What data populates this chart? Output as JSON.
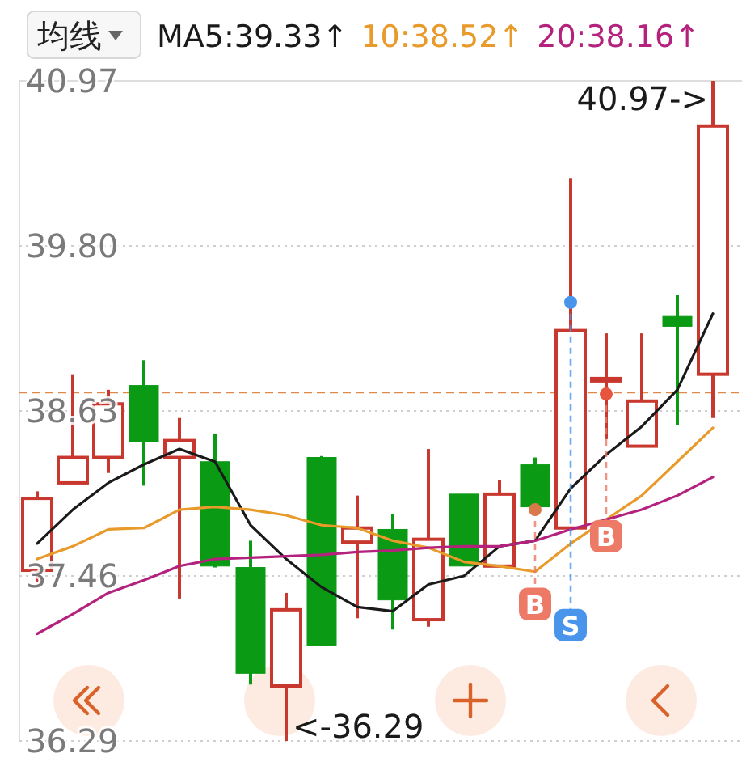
{
  "chart_data": {
    "type": "candlestick",
    "legend_title": "均线",
    "legend": "top",
    "grid": "y",
    "categories": [
      null,
      null,
      null,
      null,
      null,
      null,
      null,
      null,
      null,
      null,
      null,
      null,
      null,
      null,
      null,
      null,
      null,
      null,
      null,
      null
    ],
    "ohlc": [
      [
        37.5,
        38.06,
        37.42,
        38.01
      ],
      [
        38.12,
        38.89,
        38.12,
        38.3
      ],
      [
        38.3,
        38.78,
        38.19,
        38.68
      ],
      [
        38.81,
        38.99,
        38.1,
        38.41
      ],
      [
        38.3,
        38.58,
        37.3,
        38.42
      ],
      [
        38.27,
        38.47,
        37.52,
        37.53
      ],
      [
        37.52,
        37.71,
        36.69,
        36.77
      ],
      [
        36.68,
        37.34,
        36.29,
        37.22
      ],
      [
        38.3,
        38.31,
        36.97,
        36.97
      ],
      [
        37.7,
        38.03,
        37.16,
        37.8
      ],
      [
        37.79,
        37.9,
        37.08,
        37.29
      ],
      [
        37.15,
        38.36,
        37.1,
        37.72
      ],
      [
        38.04,
        38.04,
        37.53,
        37.53
      ],
      [
        37.53,
        38.14,
        37.53,
        38.04
      ],
      [
        38.25,
        38.3,
        37.95,
        37.95
      ],
      [
        37.8,
        40.28,
        37.8,
        39.2
      ],
      [
        38.86,
        39.18,
        38.43,
        38.86
      ],
      [
        38.38,
        39.18,
        38.38,
        38.7
      ],
      [
        39.3,
        39.45,
        38.53,
        39.23
      ],
      [
        38.89,
        40.97,
        38.58,
        40.65
      ]
    ],
    "colors": [
      "#c8382e",
      "#c8382e",
      "#c8382e",
      "#0a9a14",
      "#c8382e",
      "#0a9a14",
      "#0a9a14",
      "#c8382e",
      "#0a9a14",
      "#c8382e",
      "#0a9a14",
      "#c8382e",
      "#0a9a14",
      "#c8382e",
      "#0a9a14",
      "#c8382e",
      "#c8382e",
      "#c8382e",
      "#0a9a14",
      "#c8382e"
    ],
    "series": [
      {
        "type": "line",
        "name": "MA5:39.33↑",
        "color": "#1a1a1a",
        "values": [
          37.69,
          37.93,
          38.12,
          38.25,
          38.36,
          38.27,
          37.82,
          37.58,
          37.38,
          37.24,
          37.21,
          37.4,
          37.46,
          37.67,
          37.71,
          38.08,
          38.32,
          38.52,
          38.78,
          39.32
        ]
      },
      {
        "type": "line",
        "name": "10:38.52↑",
        "color": "#e89a2a",
        "values": [
          37.58,
          37.67,
          37.79,
          37.8,
          37.93,
          37.95,
          37.93,
          37.89,
          37.82,
          37.8,
          37.71,
          37.66,
          37.56,
          37.53,
          37.49,
          37.69,
          37.86,
          38.03,
          38.27,
          38.51
        ]
      },
      {
        "type": "line",
        "name": "20:38.16↑",
        "color": "#b4227e",
        "values": [
          37.05,
          37.19,
          37.34,
          37.43,
          37.53,
          37.58,
          37.59,
          37.6,
          37.61,
          37.63,
          37.64,
          37.66,
          37.67,
          37.67,
          37.71,
          37.79,
          37.86,
          37.93,
          38.03,
          38.16
        ]
      },
      {
        "type": "scatter",
        "color": "#ec7a66",
        "colors": [
          null,
          null,
          null,
          null,
          null,
          null,
          null,
          null,
          null,
          null,
          null,
          null,
          null,
          null,
          "#d9794a",
          null,
          "#e8553e",
          null,
          null,
          null
        ],
        "values": [
          null,
          null,
          null,
          null,
          null,
          null,
          null,
          null,
          null,
          null,
          null,
          null,
          null,
          null,
          37.93,
          null,
          38.75,
          null,
          null,
          null
        ],
        "value_labels": [
          null,
          null,
          null,
          null,
          null,
          null,
          null,
          null,
          null,
          null,
          null,
          null,
          null,
          null,
          "B",
          null,
          "B",
          null,
          null,
          null
        ]
      },
      {
        "type": "scatter",
        "color": "#4a95ec",
        "values": [
          null,
          null,
          null,
          null,
          null,
          null,
          null,
          null,
          null,
          null,
          null,
          null,
          null,
          null,
          null,
          39.4,
          null,
          null,
          null,
          null
        ],
        "value_labels": [
          null,
          null,
          null,
          null,
          null,
          null,
          null,
          null,
          null,
          null,
          null,
          null,
          null,
          null,
          null,
          "S",
          null,
          null,
          null,
          null
        ]
      }
    ],
    "ylim": [
      36.29,
      40.97
    ],
    "yticks": [
      40.97,
      {
        "value": 39.8,
        "label": "39.80"
      },
      38.63,
      37.46,
      36.29
    ],
    "ref_lines": [
      {
        "axis": "y",
        "value": 38.76,
        "color": "#e0884a",
        "line_style": "dashed"
      }
    ],
    "annotations": [
      "40.97->",
      "<-36.29"
    ]
  }
}
